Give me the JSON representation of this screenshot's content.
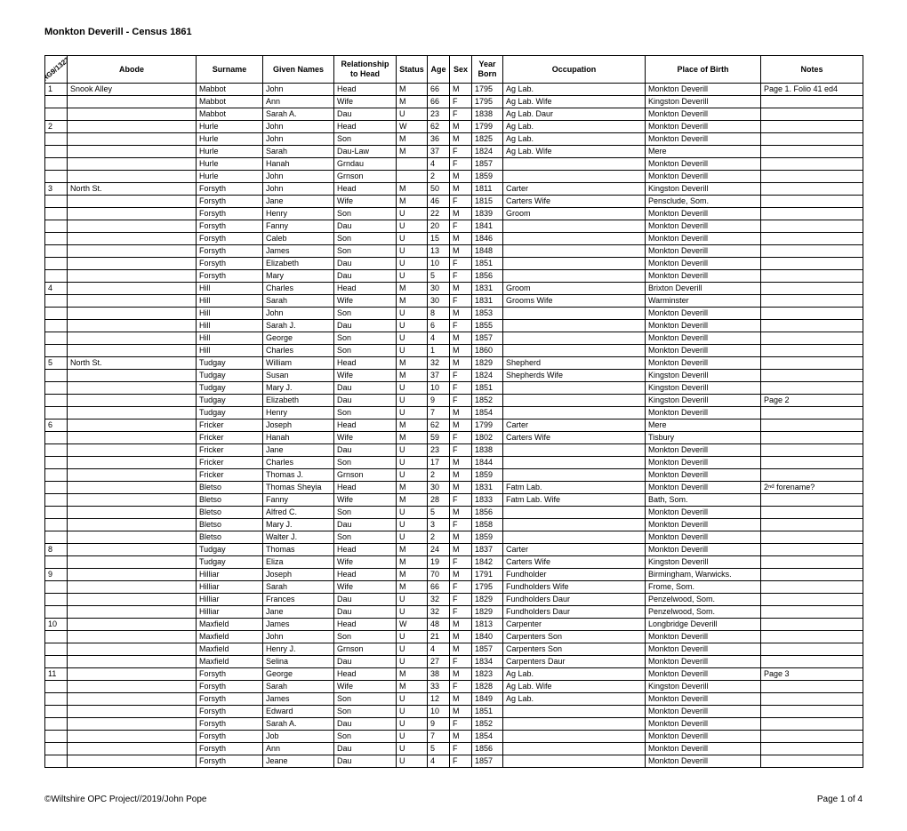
{
  "title": "Monkton Deverill - Census 1861",
  "ref": "RG9/1323",
  "columns": [
    "",
    "Abode",
    "Surname",
    "Given Names",
    "Relationship to Head",
    "Status",
    "Age",
    "Sex",
    "Year Born",
    "Occupation",
    "Place of Birth",
    "Notes"
  ],
  "col_widths": [
    "25px",
    "145px",
    "75px",
    "80px",
    "70px",
    "35px",
    "25px",
    "25px",
    "35px",
    "160px",
    "130px",
    "115px"
  ],
  "footer_left": "©Wiltshire OPC Project//2019/John Pope",
  "footer_right": "Page 1 of 4",
  "rows": [
    [
      "1",
      "Snook Alley",
      "Mabbot",
      "John",
      "Head",
      "M",
      "66",
      "M",
      "1795",
      "Ag Lab.",
      "Monkton Deverill",
      "Page 1. Folio 41 ed4"
    ],
    [
      "",
      "",
      "Mabbot",
      "Ann",
      "Wife",
      "M",
      "66",
      "F",
      "1795",
      "Ag Lab. Wife",
      "Kingston Deverill",
      ""
    ],
    [
      "",
      "",
      "Mabbot",
      "Sarah A.",
      "Dau",
      "U",
      "23",
      "F",
      "1838",
      "Ag Lab. Daur",
      "Monkton Deverill",
      ""
    ],
    [
      "2",
      "",
      "Hurle",
      "John",
      "Head",
      "W",
      "62",
      "M",
      "1799",
      "Ag Lab.",
      "Monkton Deverill",
      ""
    ],
    [
      "",
      "",
      "Hurle",
      "John",
      "Son",
      "M",
      "36",
      "M",
      "1825",
      "Ag Lab.",
      "Monkton Deverill",
      ""
    ],
    [
      "",
      "",
      "Hurle",
      "Sarah",
      "Dau-Law",
      "M",
      "37",
      "F",
      "1824",
      "Ag Lab. Wife",
      "Mere",
      ""
    ],
    [
      "",
      "",
      "Hurle",
      "Hanah",
      "Grndau",
      "",
      "4",
      "F",
      "1857",
      "",
      "Monkton Deverill",
      ""
    ],
    [
      "",
      "",
      "Hurle",
      "John",
      "Grnson",
      "",
      "2",
      "M",
      "1859",
      "",
      "Monkton Deverill",
      ""
    ],
    [
      "3",
      "North St.",
      "Forsyth",
      "John",
      "Head",
      "M",
      "50",
      "M",
      "1811",
      "Carter",
      "Kingston Deverill",
      ""
    ],
    [
      "",
      "",
      "Forsyth",
      "Jane",
      "Wife",
      "M",
      "46",
      "F",
      "1815",
      "Carters Wife",
      "Pensclude, Som.",
      ""
    ],
    [
      "",
      "",
      "Forsyth",
      "Henry",
      "Son",
      "U",
      "22",
      "M",
      "1839",
      "Groom",
      "Monkton Deverill",
      ""
    ],
    [
      "",
      "",
      "Forsyth",
      "Fanny",
      "Dau",
      "U",
      "20",
      "F",
      "1841",
      "",
      "Monkton Deverill",
      ""
    ],
    [
      "",
      "",
      "Forsyth",
      "Caleb",
      "Son",
      "U",
      "15",
      "M",
      "1846",
      "",
      "Monkton Deverill",
      ""
    ],
    [
      "",
      "",
      "Forsyth",
      "James",
      "Son",
      "U",
      "13",
      "M",
      "1848",
      "",
      "Monkton Deverill",
      ""
    ],
    [
      "",
      "",
      "Forsyth",
      "Elizabeth",
      "Dau",
      "U",
      "10",
      "F",
      "1851",
      "",
      "Monkton Deverill",
      ""
    ],
    [
      "",
      "",
      "Forsyth",
      "Mary",
      "Dau",
      "U",
      "5",
      "F",
      "1856",
      "",
      "Monkton Deverill",
      ""
    ],
    [
      "4",
      "",
      "Hill",
      "Charles",
      "Head",
      "M",
      "30",
      "M",
      "1831",
      "Groom",
      "Brixton Deverill",
      ""
    ],
    [
      "",
      "",
      "Hill",
      "Sarah",
      "Wife",
      "M",
      "30",
      "F",
      "1831",
      "Grooms Wife",
      "Warminster",
      ""
    ],
    [
      "",
      "",
      "Hill",
      "John",
      "Son",
      "U",
      "8",
      "M",
      "1853",
      "",
      "Monkton Deverill",
      ""
    ],
    [
      "",
      "",
      "Hill",
      "Sarah J.",
      "Dau",
      "U",
      "6",
      "F",
      "1855",
      "",
      "Monkton Deverill",
      ""
    ],
    [
      "",
      "",
      "Hill",
      "George",
      "Son",
      "U",
      "4",
      "M",
      "1857",
      "",
      "Monkton Deverill",
      ""
    ],
    [
      "",
      "",
      "Hill",
      "Charles",
      "Son",
      "U",
      "1",
      "M",
      "1860",
      "",
      "Monkton Deverill",
      ""
    ],
    [
      "5",
      "North St.",
      "Tudgay",
      "William",
      "Head",
      "M",
      "32",
      "M",
      "1829",
      "Shepherd",
      "Monkton Deverill",
      ""
    ],
    [
      "",
      "",
      "Tudgay",
      "Susan",
      "Wife",
      "M",
      "37",
      "F",
      "1824",
      "Shepherds Wife",
      "Kingston Deverill",
      ""
    ],
    [
      "",
      "",
      "Tudgay",
      "Mary J.",
      "Dau",
      "U",
      "10",
      "F",
      "1851",
      "",
      "Kingston Deverill",
      ""
    ],
    [
      "",
      "",
      "Tudgay",
      "Elizabeth",
      "Dau",
      "U",
      "9",
      "F",
      "1852",
      "",
      "Kingston Deverill",
      "Page 2"
    ],
    [
      "",
      "",
      "Tudgay",
      "Henry",
      "Son",
      "U",
      "7",
      "M",
      "1854",
      "",
      "Monkton Deverill",
      ""
    ],
    [
      "6",
      "",
      "Fricker",
      "Joseph",
      "Head",
      "M",
      "62",
      "M",
      "1799",
      "Carter",
      "Mere",
      ""
    ],
    [
      "",
      "",
      "Fricker",
      "Hanah",
      "Wife",
      "M",
      "59",
      "F",
      "1802",
      "Carters Wife",
      "Tisbury",
      ""
    ],
    [
      "",
      "",
      "Fricker",
      "Jane",
      "Dau",
      "U",
      "23",
      "F",
      "1838",
      "",
      "Monkton Deverill",
      ""
    ],
    [
      "",
      "",
      "Fricker",
      "Charles",
      "Son",
      "U",
      "17",
      "M",
      "1844",
      "",
      "Monkton Deverill",
      ""
    ],
    [
      "",
      "",
      "Fricker",
      "Thomas J.",
      "Grnson",
      "U",
      "2",
      "M",
      "1859",
      "",
      "Monkton Deverill",
      ""
    ],
    [
      "",
      "",
      "Bletso",
      "Thomas Sheyia",
      "Head",
      "M",
      "30",
      "M",
      "1831",
      "Fatm Lab.",
      "Monkton Deverill",
      "2ⁿᵈ forename?"
    ],
    [
      "",
      "",
      "Bletso",
      "Fanny",
      "Wife",
      "M",
      "28",
      "F",
      "1833",
      "Fatm Lab. Wife",
      "Bath, Som.",
      ""
    ],
    [
      "",
      "",
      "Bletso",
      "Alfred C.",
      "Son",
      "U",
      "5",
      "M",
      "1856",
      "",
      "Monkton Deverill",
      ""
    ],
    [
      "",
      "",
      "Bletso",
      "Mary J.",
      "Dau",
      "U",
      "3",
      "F",
      "1858",
      "",
      "Monkton Deverill",
      ""
    ],
    [
      "",
      "",
      "Bletso",
      "Walter J.",
      "Son",
      "U",
      "2",
      "M",
      "1859",
      "",
      "Monkton Deverill",
      ""
    ],
    [
      "8",
      "",
      "Tudgay",
      "Thomas",
      "Head",
      "M",
      "24",
      "M",
      "1837",
      "Carter",
      "Monkton Deverill",
      ""
    ],
    [
      "",
      "",
      "Tudgay",
      "Eliza",
      "Wife",
      "M",
      "19",
      "F",
      "1842",
      "Carters Wife",
      "Kingston Deverill",
      ""
    ],
    [
      "9",
      "",
      "Hilliar",
      "Joseph",
      "Head",
      "M",
      "70",
      "M",
      "1791",
      "Fundholder",
      "Birmingham, Warwicks.",
      ""
    ],
    [
      "",
      "",
      "Hilliar",
      "Sarah",
      "Wife",
      "M",
      "66",
      "F",
      "1795",
      "Fundholders Wife",
      "Frome, Som.",
      ""
    ],
    [
      "",
      "",
      "Hilliar",
      "Frances",
      "Dau",
      "U",
      "32",
      "F",
      "1829",
      "Fundholders Daur",
      "Penzelwood, Som.",
      ""
    ],
    [
      "",
      "",
      "Hilliar",
      "Jane",
      "Dau",
      "U",
      "32",
      "F",
      "1829",
      "Fundholders Daur",
      "Penzelwood, Som.",
      ""
    ],
    [
      "10",
      "",
      "Maxfield",
      "James",
      "Head",
      "W",
      "48",
      "M",
      "1813",
      "Carpenter",
      "Longbridge Deverill",
      ""
    ],
    [
      "",
      "",
      "Maxfield",
      "John",
      "Son",
      "U",
      "21",
      "M",
      "1840",
      "Carpenters Son",
      "Monkton Deverill",
      ""
    ],
    [
      "",
      "",
      "Maxfield",
      "Henry J.",
      "Grnson",
      "U",
      "4",
      "M",
      "1857",
      "Carpenters Son",
      "Monkton Deverill",
      ""
    ],
    [
      "",
      "",
      "Maxfield",
      "Selina",
      "Dau",
      "U",
      "27",
      "F",
      "1834",
      "Carpenters Daur",
      "Monkton Deverill",
      ""
    ],
    [
      "11",
      "",
      "Forsyth",
      "George",
      "Head",
      "M",
      "38",
      "M",
      "1823",
      "Ag Lab.",
      "Monkton Deverill",
      "Page 3"
    ],
    [
      "",
      "",
      "Forsyth",
      "Sarah",
      "Wife",
      "M",
      "33",
      "F",
      "1828",
      "Ag Lab. Wife",
      "Kingston Deverill",
      ""
    ],
    [
      "",
      "",
      "Forsyth",
      "James",
      "Son",
      "U",
      "12",
      "M",
      "1849",
      "Ag Lab.",
      "Monkton Deverill",
      ""
    ],
    [
      "",
      "",
      "Forsyth",
      "Edward",
      "Son",
      "U",
      "10",
      "M",
      "1851",
      "",
      "Monkton Deverill",
      ""
    ],
    [
      "",
      "",
      "Forsyth",
      "Sarah A.",
      "Dau",
      "U",
      "9",
      "F",
      "1852",
      "",
      "Monkton Deverill",
      ""
    ],
    [
      "",
      "",
      "Forsyth",
      "Job",
      "Son",
      "U",
      "7",
      "M",
      "1854",
      "",
      "Monkton Deverill",
      ""
    ],
    [
      "",
      "",
      "Forsyth",
      "Ann",
      "Dau",
      "U",
      "5",
      "F",
      "1856",
      "",
      "Monkton Deverill",
      ""
    ],
    [
      "",
      "",
      "Forsyth",
      "Jeane",
      "Dau",
      "U",
      "4",
      "F",
      "1857",
      "",
      "Monkton Deverill",
      ""
    ]
  ]
}
